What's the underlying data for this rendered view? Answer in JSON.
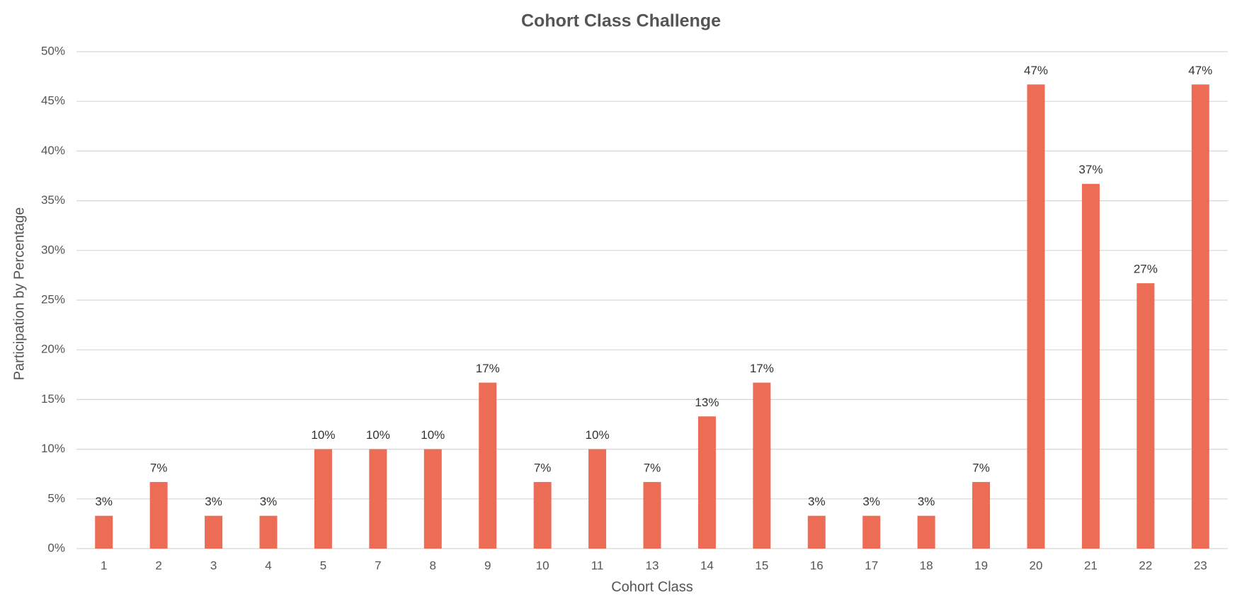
{
  "chart_data": {
    "type": "bar",
    "title": "Cohort Class Challenge",
    "x_label": "Cohort Class",
    "y_label": "Participation by Percentage",
    "categories": [
      "1",
      "2",
      "3",
      "4",
      "5",
      "7",
      "8",
      "9",
      "10",
      "11",
      "13",
      "14",
      "15",
      "16",
      "17",
      "18",
      "19",
      "20",
      "21",
      "22",
      "23"
    ],
    "values": [
      3.3,
      6.7,
      3.3,
      3.3,
      10,
      10,
      10,
      16.7,
      6.7,
      10,
      6.7,
      13.3,
      16.7,
      3.3,
      3.3,
      3.3,
      6.7,
      46.7,
      36.7,
      26.7,
      46.7
    ],
    "value_labels": [
      "3%",
      "7%",
      "3%",
      "3%",
      "10%",
      "10%",
      "10%",
      "17%",
      "7%",
      "10%",
      "7%",
      "13%",
      "17%",
      "3%",
      "3%",
      "3%",
      "7%",
      "47%",
      "37%",
      "27%",
      "47%"
    ],
    "color": "#ec6c55",
    "ylim": [
      0,
      50
    ],
    "yticks": [
      {
        "value": 0,
        "label": "0%"
      },
      {
        "value": 5,
        "label": "5%"
      },
      {
        "value": 10,
        "label": "10%"
      },
      {
        "value": 15,
        "label": "15%"
      },
      {
        "value": 20,
        "label": "20%"
      },
      {
        "value": 25,
        "label": "25%"
      },
      {
        "value": 30,
        "label": "30%"
      },
      {
        "value": 35,
        "label": "35%"
      },
      {
        "value": 40,
        "label": "40%"
      },
      {
        "value": 45,
        "label": "45%"
      },
      {
        "value": 50,
        "label": "50%"
      }
    ],
    "grid": true
  }
}
